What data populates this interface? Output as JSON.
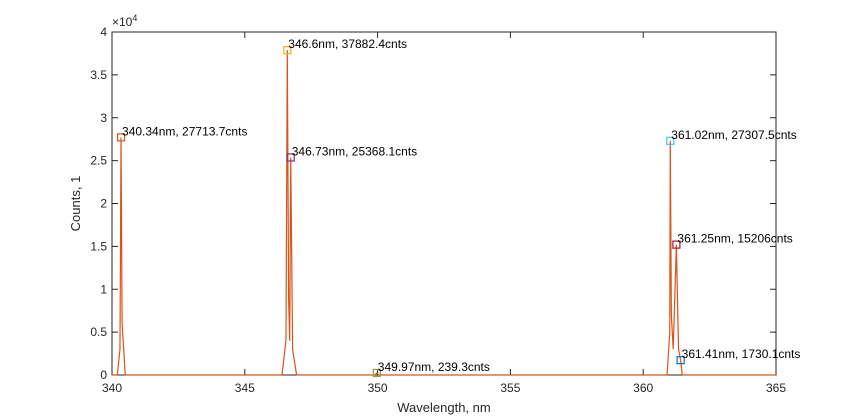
{
  "chart_data": {
    "type": "line",
    "xlabel": "Wavelength, nm",
    "ylabel": "Counts, 1",
    "xlim": [
      340,
      365
    ],
    "ylim": [
      0,
      40000
    ],
    "x_ticks": [
      "340",
      "345",
      "350",
      "355",
      "360",
      "365"
    ],
    "y_ticks": [
      "0",
      "0.5",
      "1",
      "1.5",
      "2",
      "2.5",
      "3",
      "3.5",
      "4"
    ],
    "y_exponent_label": "×10",
    "y_exponent_power": "4",
    "grid": false,
    "line_color": "#d95319",
    "series": [
      {
        "x": [
          340.0,
          340.2,
          340.3,
          340.34,
          340.38,
          340.5,
          346.4,
          346.55,
          346.6,
          346.65,
          346.69,
          346.73,
          346.8,
          346.95,
          349.9,
          349.97,
          350.05,
          360.9,
          361.0,
          361.02,
          361.06,
          361.13,
          361.25,
          361.33,
          361.41,
          361.47,
          361.6,
          365.0
        ],
        "y": [
          0,
          0,
          3000,
          27713.7,
          6000,
          0,
          0,
          4000,
          37882.4,
          9000,
          4000,
          25368.1,
          3000,
          0,
          0,
          239.3,
          0,
          0,
          5000,
          27307.5,
          7000,
          3000,
          15206,
          3000,
          1730.1,
          0,
          0,
          0
        ]
      }
    ],
    "annotations": [
      {
        "x": 340.34,
        "y": 27713.7,
        "text": "340.34nm, 27713.7cnts",
        "marker_color": "#d95319"
      },
      {
        "x": 346.6,
        "y": 37882.4,
        "text": "346.6nm, 37882.4cnts",
        "marker_color": "#edb120"
      },
      {
        "x": 346.73,
        "y": 25368.1,
        "text": "346.73nm, 25368.1cnts",
        "marker_color": "#7e2f8e"
      },
      {
        "x": 349.97,
        "y": 239.3,
        "text": "349.97nm, 239.3cnts",
        "marker_color": "#77ac30"
      },
      {
        "x": 361.02,
        "y": 27307.5,
        "text": "361.02nm, 27307.5cnts",
        "marker_color": "#4dbeee"
      },
      {
        "x": 361.25,
        "y": 15206,
        "text": "361.25nm, 15206cnts",
        "marker_color": "#a2142f"
      },
      {
        "x": 361.41,
        "y": 1730.1,
        "text": "361.41nm, 1730.1cnts",
        "marker_color": "#0072bd"
      }
    ]
  }
}
